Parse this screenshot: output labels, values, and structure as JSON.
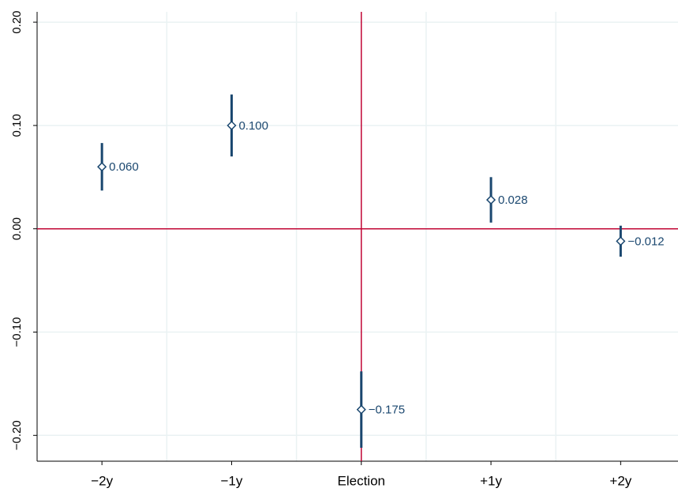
{
  "chart_data": {
    "type": "errorbar",
    "categories": [
      "−2y",
      "−1y",
      "Election",
      "+1y",
      "+2y"
    ],
    "values": [
      0.06,
      0.1,
      -0.175,
      0.028,
      -0.012
    ],
    "value_labels": [
      "0.060",
      "0.100",
      "−0.175",
      "0.028",
      "−0.012"
    ],
    "errors": [
      0.023,
      0.03,
      0.037,
      0.022,
      0.015
    ],
    "color": "#1a476f",
    "ylim": [
      -0.225,
      0.21
    ],
    "yticks": [
      {
        "value": 0.2,
        "label": "0.20"
      },
      {
        "value": 0.1,
        "label": "0.10"
      },
      {
        "value": 0,
        "label": "0.00"
      },
      {
        "value": -0.1,
        "label": "−0.10"
      },
      {
        "value": -0.2,
        "label": "−0.20"
      }
    ],
    "grid": true,
    "hline": 0,
    "vline": "Election",
    "reference_color": "#c10534"
  }
}
